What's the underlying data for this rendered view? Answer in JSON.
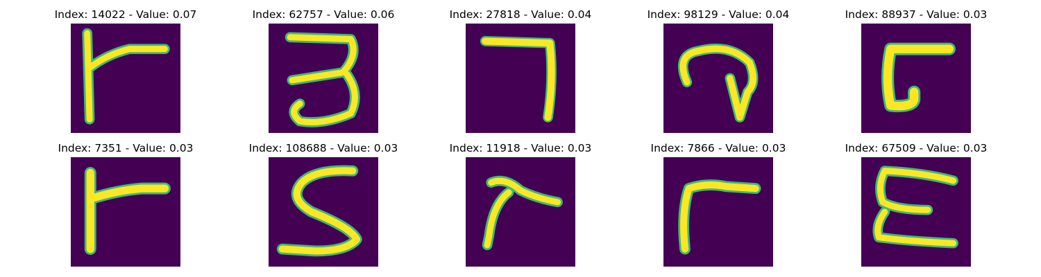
{
  "colors": {
    "background_cell": "#440154",
    "stroke_edge": "#3bba7a",
    "stroke_core": "#fde725",
    "title_text": "#000000"
  },
  "samples": [
    {
      "title": "Index: 14022 - Value: 0.07",
      "glyph": "r-shape"
    },
    {
      "title": "Index: 62757 - Value: 0.06",
      "glyph": "digit-three"
    },
    {
      "title": "Index: 27818 - Value: 0.04",
      "glyph": "digit-seven"
    },
    {
      "title": "Index: 98129 - Value: 0.04",
      "glyph": "curled-arrow"
    },
    {
      "title": "Index: 88937 - Value: 0.03",
      "glyph": "c-bracket"
    },
    {
      "title": "Index: 7351 - Value: 0.03",
      "glyph": "r-shape"
    },
    {
      "title": "Index: 108688 - Value: 0.03",
      "glyph": "digit-five"
    },
    {
      "title": "Index: 11918 - Value: 0.03",
      "glyph": "r-shape"
    },
    {
      "title": "Index: 7866 - Value: 0.03",
      "glyph": "r-shape"
    },
    {
      "title": "Index: 67509 - Value: 0.03",
      "glyph": "letter-e"
    }
  ]
}
